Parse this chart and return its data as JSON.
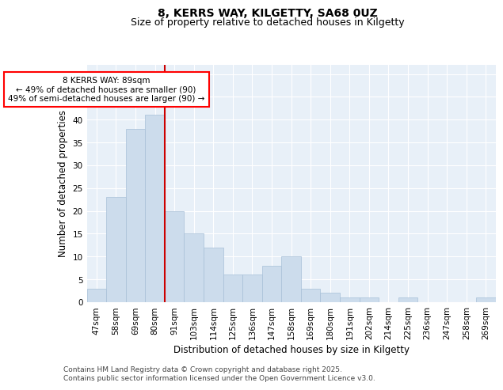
{
  "title_line1": "8, KERRS WAY, KILGETTY, SA68 0UZ",
  "title_line2": "Size of property relative to detached houses in Kilgetty",
  "xlabel": "Distribution of detached houses by size in Kilgetty",
  "ylabel": "Number of detached properties",
  "categories": [
    "47sqm",
    "58sqm",
    "69sqm",
    "80sqm",
    "91sqm",
    "103sqm",
    "114sqm",
    "125sqm",
    "136sqm",
    "147sqm",
    "158sqm",
    "169sqm",
    "180sqm",
    "191sqm",
    "202sqm",
    "214sqm",
    "225sqm",
    "236sqm",
    "247sqm",
    "258sqm",
    "269sqm"
  ],
  "values": [
    3,
    23,
    38,
    41,
    20,
    15,
    12,
    6,
    6,
    8,
    10,
    3,
    2,
    1,
    1,
    0,
    1,
    0,
    0,
    0,
    1
  ],
  "bar_color": "#ccdcec",
  "bar_edge_color": "#a8c0d8",
  "bar_linewidth": 0.5,
  "vline_index": 4,
  "vline_color": "#cc0000",
  "annotation_box_text": [
    "8 KERRS WAY: 89sqm",
    "← 49% of detached houses are smaller (90)",
    "49% of semi-detached houses are larger (90) →"
  ],
  "ylim": [
    0,
    52
  ],
  "yticks": [
    0,
    5,
    10,
    15,
    20,
    25,
    30,
    35,
    40,
    45,
    50
  ],
  "bg_color": "#ffffff",
  "plot_bg_color": "#e8f0f8",
  "grid_color": "#ffffff",
  "footer_line1": "Contains HM Land Registry data © Crown copyright and database right 2025.",
  "footer_line2": "Contains public sector information licensed under the Open Government Licence v3.0.",
  "title_fontsize": 10,
  "subtitle_fontsize": 9,
  "axis_label_fontsize": 8.5,
  "tick_fontsize": 7.5,
  "annotation_fontsize": 7.5,
  "footer_fontsize": 6.5
}
